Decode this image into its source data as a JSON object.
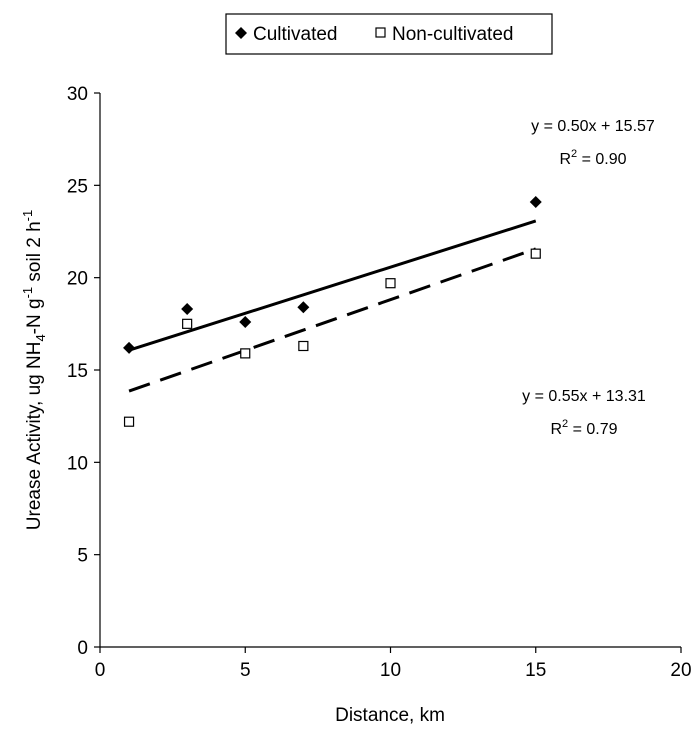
{
  "chart_data": {
    "type": "scatter",
    "title": "",
    "xlabel": "Distance, km",
    "ylabel": {
      "prefix": "Urease Activity, ug NH",
      "sub": "4",
      "mid1": "-N g",
      "sup1": "-1",
      "mid2": " soil 2 h",
      "sup2": "-1"
    },
    "xlim": [
      0,
      20
    ],
    "ylim": [
      0,
      30
    ],
    "x_ticks": [
      "0",
      "5",
      "10",
      "15",
      "20"
    ],
    "y_ticks": [
      "0",
      "5",
      "10",
      "15",
      "20",
      "25",
      "30"
    ],
    "grid": false,
    "legend_position": "top-center",
    "series": [
      {
        "name": "Cultivated",
        "marker": "diamond",
        "color": "#000000",
        "x": [
          1,
          3,
          5,
          7,
          15
        ],
        "y": [
          16.2,
          18.3,
          17.6,
          18.4,
          24.1
        ],
        "trendline": {
          "slope": 0.5,
          "intercept": 15.57,
          "x_range": [
            1,
            15
          ],
          "style": "solid",
          "equation": "y = 0.50x + 15.57",
          "r2_prefix": "R",
          "r2_sup": "2",
          "r2_value": " = 0.90"
        }
      },
      {
        "name": "Non-cultivated",
        "marker": "open-square",
        "color": "#000000",
        "x": [
          1,
          3,
          5,
          7,
          10,
          15
        ],
        "y": [
          12.2,
          17.5,
          15.9,
          16.3,
          19.7,
          21.3
        ],
        "trendline": {
          "slope": 0.55,
          "intercept": 13.31,
          "x_range": [
            1,
            15
          ],
          "style": "dashed",
          "equation": "y = 0.55x + 13.31",
          "r2_prefix": "R",
          "r2_sup": "2",
          "r2_value": " = 0.79"
        }
      }
    ]
  }
}
